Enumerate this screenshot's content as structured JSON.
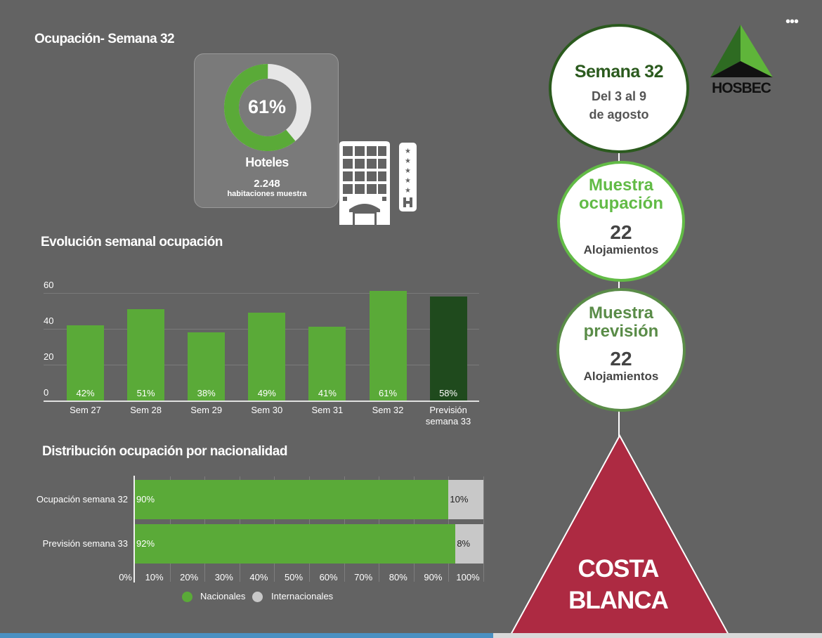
{
  "header": {
    "title": "Ocupación- Semana 32",
    "more_label": "•••"
  },
  "logo": {
    "text": "HOSBEC",
    "colors": {
      "dark": "#2e6b22",
      "light": "#5fb53a",
      "base": "#111111"
    }
  },
  "hotel_card": {
    "donut_value_label": "61%",
    "occupancy_percent": 61,
    "title": "Hoteles",
    "rooms": "2.248",
    "rooms_label": "habitaciones muestra",
    "icon": "hotel-building-icon",
    "colors": {
      "filled": "#5aaa38",
      "empty": "#e6e6e6"
    }
  },
  "timeline": {
    "week": {
      "title": "Semana 32",
      "line1": "Del 3 al 9",
      "line2": "de agosto"
    },
    "sample_occupancy": {
      "title_line1": "Muestra",
      "title_line2": "ocupación",
      "count": "22",
      "unit": "Alojamientos"
    },
    "sample_forecast": {
      "title_line1": "Muestra",
      "title_line2": "previsión",
      "count": "22",
      "unit": "Alojamientos"
    },
    "region": {
      "line1": "COSTA",
      "line2": "BLANCA"
    },
    "colors": {
      "week_border": "#2b5a1e",
      "occupancy_border": "#62bb46",
      "forecast_border": "#5a8c48",
      "region_fill": "#ad2a42"
    }
  },
  "chart_data": [
    {
      "type": "bar",
      "title": "Evolución semanal ocupación",
      "categories": [
        "Sem 27",
        "Sem 28",
        "Sem 29",
        "Sem 30",
        "Sem 31",
        "Sem 32",
        "Previsión semana 33"
      ],
      "category_lines": [
        [
          "Sem 27"
        ],
        [
          "Sem 28"
        ],
        [
          "Sem 29"
        ],
        [
          "Sem 30"
        ],
        [
          "Sem 31"
        ],
        [
          "Sem 32"
        ],
        [
          "Previsión",
          "semana 33"
        ]
      ],
      "values": [
        42,
        51,
        38,
        49,
        41,
        61,
        58
      ],
      "value_labels": [
        "42%",
        "51%",
        "38%",
        "49%",
        "41%",
        "61%",
        "58%"
      ],
      "yticks": [
        "0",
        "20",
        "40",
        "60"
      ],
      "ylim": [
        0,
        60
      ],
      "grid": true,
      "colors": {
        "actual": "#5aaa38",
        "forecast": "#1f4a1d"
      }
    },
    {
      "type": "bar",
      "orientation": "horizontal-stacked",
      "title": "Distribución ocupación por nacionalidad",
      "categories": [
        "Ocupación semana 32",
        "Previsión semana 33"
      ],
      "series": [
        {
          "name": "Nacionales",
          "values": [
            90,
            92
          ],
          "labels": [
            "90%",
            "92%"
          ],
          "color": "#5aaa38"
        },
        {
          "name": "Internacionales",
          "values": [
            10,
            8
          ],
          "labels": [
            "10%",
            "8%"
          ],
          "color": "#c8c8c8"
        }
      ],
      "xticks": [
        "0%",
        "10%",
        "20%",
        "30%",
        "40%",
        "50%",
        "60%",
        "70%",
        "80%",
        "90%",
        "100%"
      ],
      "xlim": [
        0,
        100
      ],
      "legend": "bottom"
    }
  ],
  "progress": {
    "value_percent": 60,
    "colors": {
      "fill": "#4a90c2",
      "track": "#d9d9d9"
    }
  }
}
